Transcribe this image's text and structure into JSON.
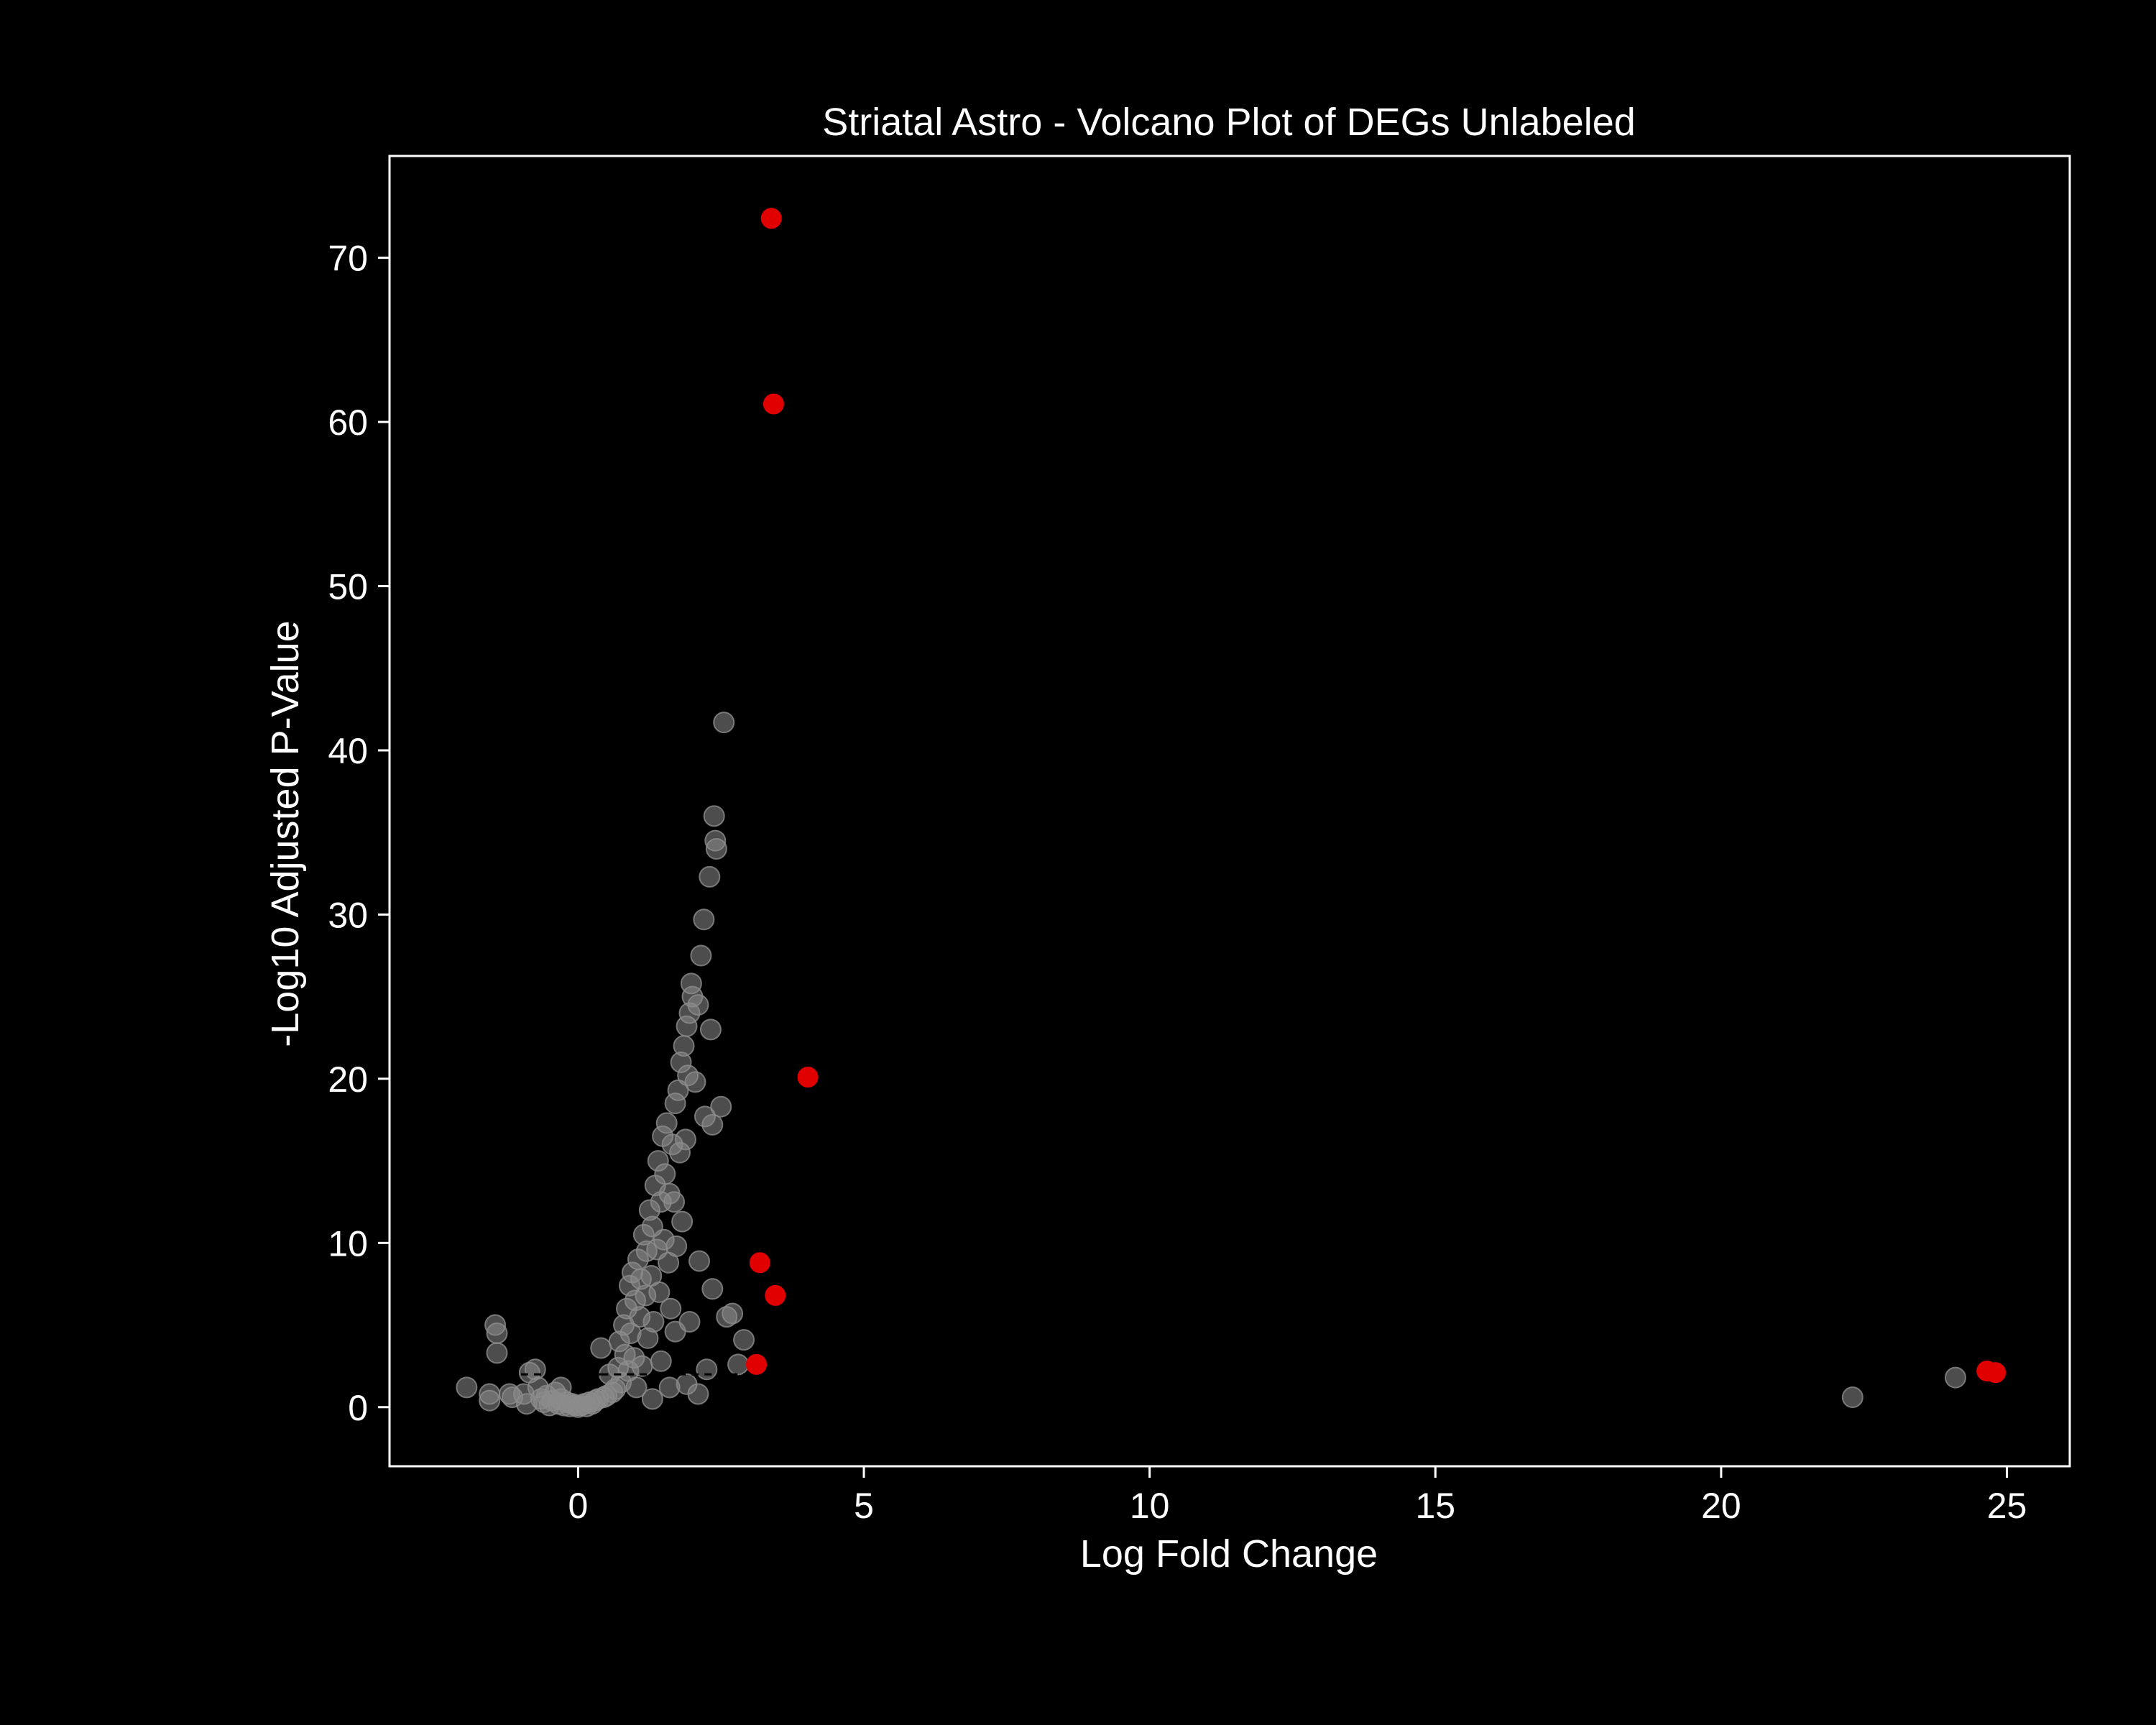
{
  "chart_data": {
    "type": "scatter",
    "title": "Striatal Astro - Volcano Plot of DEGs Unlabeled",
    "xlabel": "Log Fold Change",
    "ylabel": "-Log10 Adjusted P-Value",
    "xlim": [
      -3.3,
      26.1
    ],
    "ylim": [
      -3.6,
      76.2
    ],
    "xticks": [
      0,
      5,
      10,
      15,
      20,
      25
    ],
    "yticks": [
      0,
      10,
      20,
      30,
      40,
      50,
      60,
      70
    ],
    "grid": false,
    "legend": "none",
    "colors": {
      "background": "#000000",
      "axes": "#ffffff",
      "nonsignificant": "#8c8c8c",
      "significant": "#e00000",
      "threshold_line": "#000000"
    },
    "threshold_lines": [
      {
        "y": 2.0,
        "x_range": [
          -1.0,
          0.4
        ]
      },
      {
        "y": 2.0,
        "x_range": [
          0.4,
          3.0
        ]
      }
    ],
    "series": [
      {
        "values": [
          [
            -1.95,
            1.2
          ],
          [
            -1.55,
            0.4
          ],
          [
            -1.55,
            0.8
          ],
          [
            -1.45,
            5.0
          ],
          [
            -1.42,
            4.5
          ],
          [
            -1.42,
            3.3
          ],
          [
            -1.2,
            0.8
          ],
          [
            -1.15,
            0.6
          ],
          [
            -0.95,
            0.8
          ],
          [
            -0.9,
            0.2
          ],
          [
            -0.85,
            2.1
          ],
          [
            -0.75,
            2.3
          ],
          [
            -0.7,
            1.2
          ],
          [
            -0.65,
            0.5
          ],
          [
            -0.6,
            0.3
          ],
          [
            -0.55,
            0.7
          ],
          [
            -0.5,
            0.1
          ],
          [
            -0.45,
            0.4
          ],
          [
            -0.4,
            0.9
          ],
          [
            -0.35,
            0.2
          ],
          [
            -0.3,
            0.5
          ],
          [
            -0.3,
            1.2
          ],
          [
            -0.25,
            0.1
          ],
          [
            -0.2,
            0.3
          ],
          [
            -0.15,
            0.05
          ],
          [
            -0.1,
            0.2
          ],
          [
            -0.05,
            0.1
          ],
          [
            0.0,
            0.0
          ],
          [
            0.05,
            0.1
          ],
          [
            0.1,
            0.2
          ],
          [
            0.15,
            0.05
          ],
          [
            0.2,
            0.3
          ],
          [
            0.25,
            0.2
          ],
          [
            0.3,
            0.4
          ],
          [
            0.35,
            0.5
          ],
          [
            0.4,
            3.6
          ],
          [
            0.45,
            0.6
          ],
          [
            0.5,
            0.7
          ],
          [
            0.55,
            2.0
          ],
          [
            0.6,
            0.9
          ],
          [
            0.65,
            1.1
          ],
          [
            0.7,
            2.4
          ],
          [
            0.72,
            4.0
          ],
          [
            0.75,
            1.5
          ],
          [
            0.8,
            5.0
          ],
          [
            0.82,
            3.2
          ],
          [
            0.85,
            6.0
          ],
          [
            0.88,
            2.2
          ],
          [
            0.9,
            7.4
          ],
          [
            0.92,
            4.5
          ],
          [
            0.95,
            8.2
          ],
          [
            0.98,
            3.0
          ],
          [
            1.0,
            6.5
          ],
          [
            1.02,
            1.2
          ],
          [
            1.05,
            9.0
          ],
          [
            1.08,
            5.5
          ],
          [
            1.1,
            7.8
          ],
          [
            1.12,
            2.5
          ],
          [
            1.15,
            10.5
          ],
          [
            1.18,
            6.8
          ],
          [
            1.2,
            9.5
          ],
          [
            1.22,
            4.2
          ],
          [
            1.25,
            12.0
          ],
          [
            1.28,
            8.0
          ],
          [
            1.3,
            11.0
          ],
          [
            1.32,
            5.2
          ],
          [
            1.35,
            13.5
          ],
          [
            1.38,
            9.6
          ],
          [
            1.4,
            15.0
          ],
          [
            1.42,
            7.0
          ],
          [
            1.45,
            12.5
          ],
          [
            1.48,
            16.5
          ],
          [
            1.5,
            10.2
          ],
          [
            1.52,
            14.2
          ],
          [
            1.55,
            17.3
          ],
          [
            1.58,
            8.8
          ],
          [
            1.6,
            13.0
          ],
          [
            1.62,
            6.0
          ],
          [
            1.65,
            16.0
          ],
          [
            1.68,
            12.5
          ],
          [
            1.7,
            18.5
          ],
          [
            1.72,
            9.8
          ],
          [
            1.75,
            19.3
          ],
          [
            1.78,
            15.5
          ],
          [
            1.8,
            21.0
          ],
          [
            1.82,
            11.3
          ],
          [
            1.85,
            22.0
          ],
          [
            1.88,
            16.3
          ],
          [
            1.9,
            23.2
          ],
          [
            1.92,
            20.2
          ],
          [
            1.95,
            24.0
          ],
          [
            1.98,
            25.8
          ],
          [
            2.0,
            25.0
          ],
          [
            2.05,
            19.8
          ],
          [
            2.1,
            24.5
          ],
          [
            2.12,
            8.9
          ],
          [
            2.15,
            27.5
          ],
          [
            2.2,
            29.7
          ],
          [
            2.22,
            17.7
          ],
          [
            2.25,
            2.3
          ],
          [
            2.3,
            32.3
          ],
          [
            2.32,
            23.0
          ],
          [
            2.35,
            17.2
          ],
          [
            2.38,
            36.0
          ],
          [
            2.4,
            34.5
          ],
          [
            2.42,
            34.0
          ],
          [
            2.5,
            18.3
          ],
          [
            2.55,
            41.7
          ],
          [
            2.6,
            5.5
          ],
          [
            2.7,
            5.7
          ],
          [
            2.8,
            2.6
          ],
          [
            2.9,
            4.1
          ],
          [
            1.3,
            0.5
          ],
          [
            1.6,
            1.2
          ],
          [
            1.9,
            1.4
          ],
          [
            2.1,
            0.8
          ],
          [
            1.95,
            5.2
          ],
          [
            2.35,
            7.2
          ],
          [
            1.45,
            2.8
          ],
          [
            1.7,
            4.6
          ],
          [
            22.3,
            0.6
          ],
          [
            24.1,
            1.8
          ]
        ]
      },
      {
        "values": [
          [
            3.38,
            72.4
          ],
          [
            3.42,
            61.1
          ],
          [
            4.02,
            20.1
          ],
          [
            3.18,
            8.8
          ],
          [
            3.45,
            6.8
          ],
          [
            3.12,
            2.6
          ],
          [
            24.65,
            2.2
          ],
          [
            24.8,
            2.1
          ]
        ]
      }
    ]
  }
}
